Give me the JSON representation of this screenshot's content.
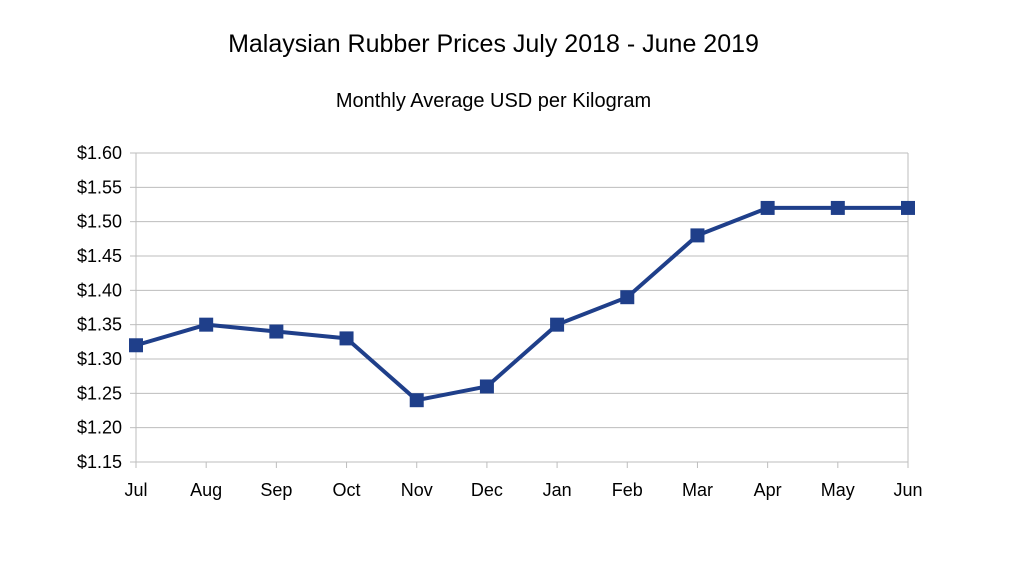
{
  "chart_data": {
    "type": "line",
    "title": "Malaysian Rubber Prices July 2018 - June 2019",
    "subtitle": "Monthly Average USD per Kilogram",
    "xlabel": "",
    "ylabel": "",
    "categories": [
      "Jul",
      "Aug",
      "Sep",
      "Oct",
      "Nov",
      "Dec",
      "Jan",
      "Feb",
      "Mar",
      "Apr",
      "May",
      "Jun"
    ],
    "series": [
      {
        "values": [
          1.32,
          1.35,
          1.34,
          1.33,
          1.24,
          1.26,
          1.35,
          1.39,
          1.48,
          1.52,
          1.52,
          1.52
        ]
      }
    ],
    "ylim": [
      1.15,
      1.6
    ],
    "yticks": [
      1.15,
      1.2,
      1.25,
      1.3,
      1.35,
      1.4,
      1.45,
      1.5,
      1.55,
      1.6
    ],
    "ytick_labels": [
      "$1.15",
      "$1.20",
      "$1.25",
      "$1.30",
      "$1.35",
      "$1.40",
      "$1.45",
      "$1.50",
      "$1.55",
      "$1.60"
    ],
    "grid": true,
    "legend": "none",
    "marker": "square",
    "line_color": "#1f3f8a",
    "grid_color": "#bdbdbd"
  }
}
